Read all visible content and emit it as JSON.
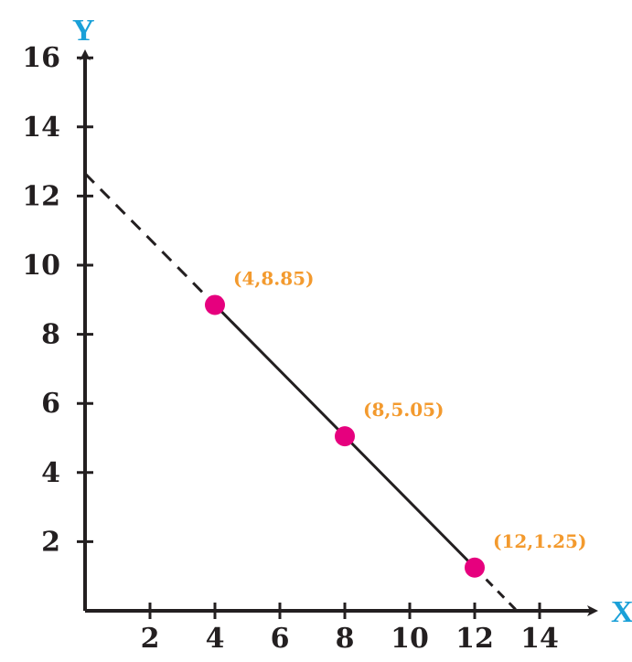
{
  "chart_data": {
    "type": "line",
    "xlabel": "X",
    "ylabel": "Y",
    "xlim": [
      0,
      15
    ],
    "ylim": [
      0,
      17
    ],
    "xticks": [
      "2",
      "4",
      "6",
      "8",
      "10",
      "12",
      "14"
    ],
    "yticks": [
      "2",
      "4",
      "6",
      "8",
      "10",
      "12",
      "14",
      "16"
    ],
    "grid": false,
    "series": [
      {
        "points": [
          {
            "x": 4,
            "y": 8.85,
            "label": "(4,8.85)"
          },
          {
            "x": 8,
            "y": 5.05,
            "label": "(8,5.05)"
          },
          {
            "x": 12,
            "y": 1.25,
            "label": "(12,1.25)"
          }
        ],
        "extrapolated": {
          "y_intercept": 12.65,
          "x_intercept": 13.3
        },
        "line_style": "solid between points, dashed extrapolation",
        "marker_color": "#e6007e",
        "line_color": "#231f20"
      }
    ],
    "colors": {
      "axis_label": "#1aa0d8",
      "point_label": "#f39a2e",
      "axis": "#231f20"
    }
  }
}
